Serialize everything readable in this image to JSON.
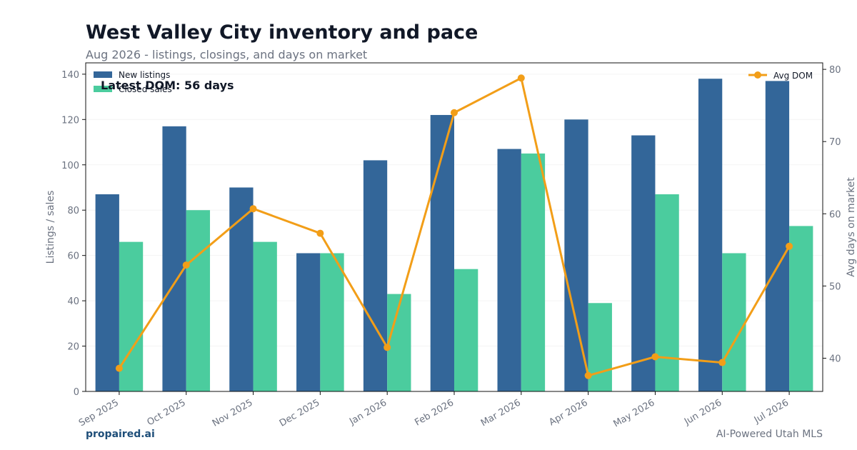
{
  "header": {
    "title": "West Valley City inventory and pace",
    "subtitle": "Aug 2026 - listings, closings, and days on market"
  },
  "footer": {
    "brand": "propaired.ai",
    "attribution": "AI-Powered Utah MLS"
  },
  "chart_data": {
    "type": "bar",
    "title": "West Valley City inventory and pace",
    "subtitle": "Aug 2026 - listings, closings, and days on market",
    "categories": [
      "Sep 2025",
      "Oct 2025",
      "Nov 2025",
      "Dec 2025",
      "Jan 2026",
      "Feb 2026",
      "Mar 2026",
      "Apr 2026",
      "May 2026",
      "Jun 2026",
      "Jul 2026"
    ],
    "series": [
      {
        "name": "New listings",
        "type": "bar",
        "axis": "left",
        "color": "#336699",
        "values": [
          87,
          117,
          90,
          61,
          102,
          122,
          107,
          120,
          113,
          138,
          137
        ]
      },
      {
        "name": "Closed sales",
        "type": "bar",
        "axis": "left",
        "color": "#4bcc9e",
        "values": [
          66,
          80,
          66,
          61,
          43,
          54,
          105,
          39,
          87,
          61,
          73
        ]
      },
      {
        "name": "Avg DOM",
        "type": "line",
        "axis": "right",
        "color": "#f29e18",
        "values": [
          38.6,
          52.9,
          60.7,
          57.3,
          41.5,
          74.0,
          78.8,
          37.6,
          40.2,
          39.4,
          55.5
        ]
      }
    ],
    "ylabel": "Listings / sales",
    "y2label": "Avg days on market",
    "ylim": [
      0,
      145
    ],
    "yticks": [
      0,
      20,
      40,
      60,
      80,
      100,
      120,
      140
    ],
    "y2lim": [
      35.4,
      80.9
    ],
    "y2ticks": [
      40,
      50,
      60,
      70,
      80
    ],
    "grid": true,
    "legend_left": "top-left",
    "legend_right": "top-right",
    "annotation": "Latest DOM: 56 days"
  }
}
